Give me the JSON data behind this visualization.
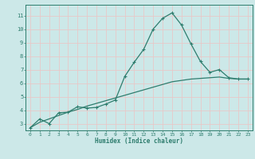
{
  "title": "",
  "xlabel": "Humidex (Indice chaleur)",
  "ylabel": "",
  "background_color": "#cce8e8",
  "grid_color": "#f0f0f0",
  "line_color": "#2e7d6e",
  "xlim": [
    -0.5,
    23.5
  ],
  "ylim": [
    2.5,
    11.8
  ],
  "xticks": [
    0,
    1,
    2,
    3,
    4,
    5,
    6,
    7,
    8,
    9,
    10,
    11,
    12,
    13,
    14,
    15,
    16,
    17,
    18,
    19,
    20,
    21,
    22,
    23
  ],
  "yticks": [
    3,
    4,
    5,
    6,
    7,
    8,
    9,
    10,
    11
  ],
  "series1_x": [
    0,
    1,
    2,
    3,
    4,
    5,
    6,
    7,
    8,
    9,
    10,
    11,
    12,
    13,
    14,
    15,
    16,
    17,
    18,
    19,
    20,
    21,
    22,
    23
  ],
  "series1_y": [
    2.7,
    3.35,
    3.0,
    3.8,
    3.85,
    4.25,
    4.15,
    4.2,
    4.45,
    4.75,
    6.5,
    7.55,
    8.5,
    10.0,
    10.8,
    11.2,
    10.3,
    8.9,
    7.6,
    6.8,
    7.0,
    6.4,
    6.3,
    6.3
  ],
  "series2_x": [
    0,
    1,
    2,
    3,
    4,
    5,
    6,
    7,
    8,
    9,
    10,
    11,
    12,
    13,
    14,
    15,
    16,
    17,
    18,
    19,
    20,
    21,
    22,
    23
  ],
  "series2_y": [
    2.7,
    3.1,
    3.35,
    3.6,
    3.85,
    4.05,
    4.3,
    4.5,
    4.7,
    4.9,
    5.1,
    5.3,
    5.5,
    5.7,
    5.9,
    6.1,
    6.2,
    6.3,
    6.35,
    6.4,
    6.45,
    6.35,
    6.3,
    6.3
  ]
}
